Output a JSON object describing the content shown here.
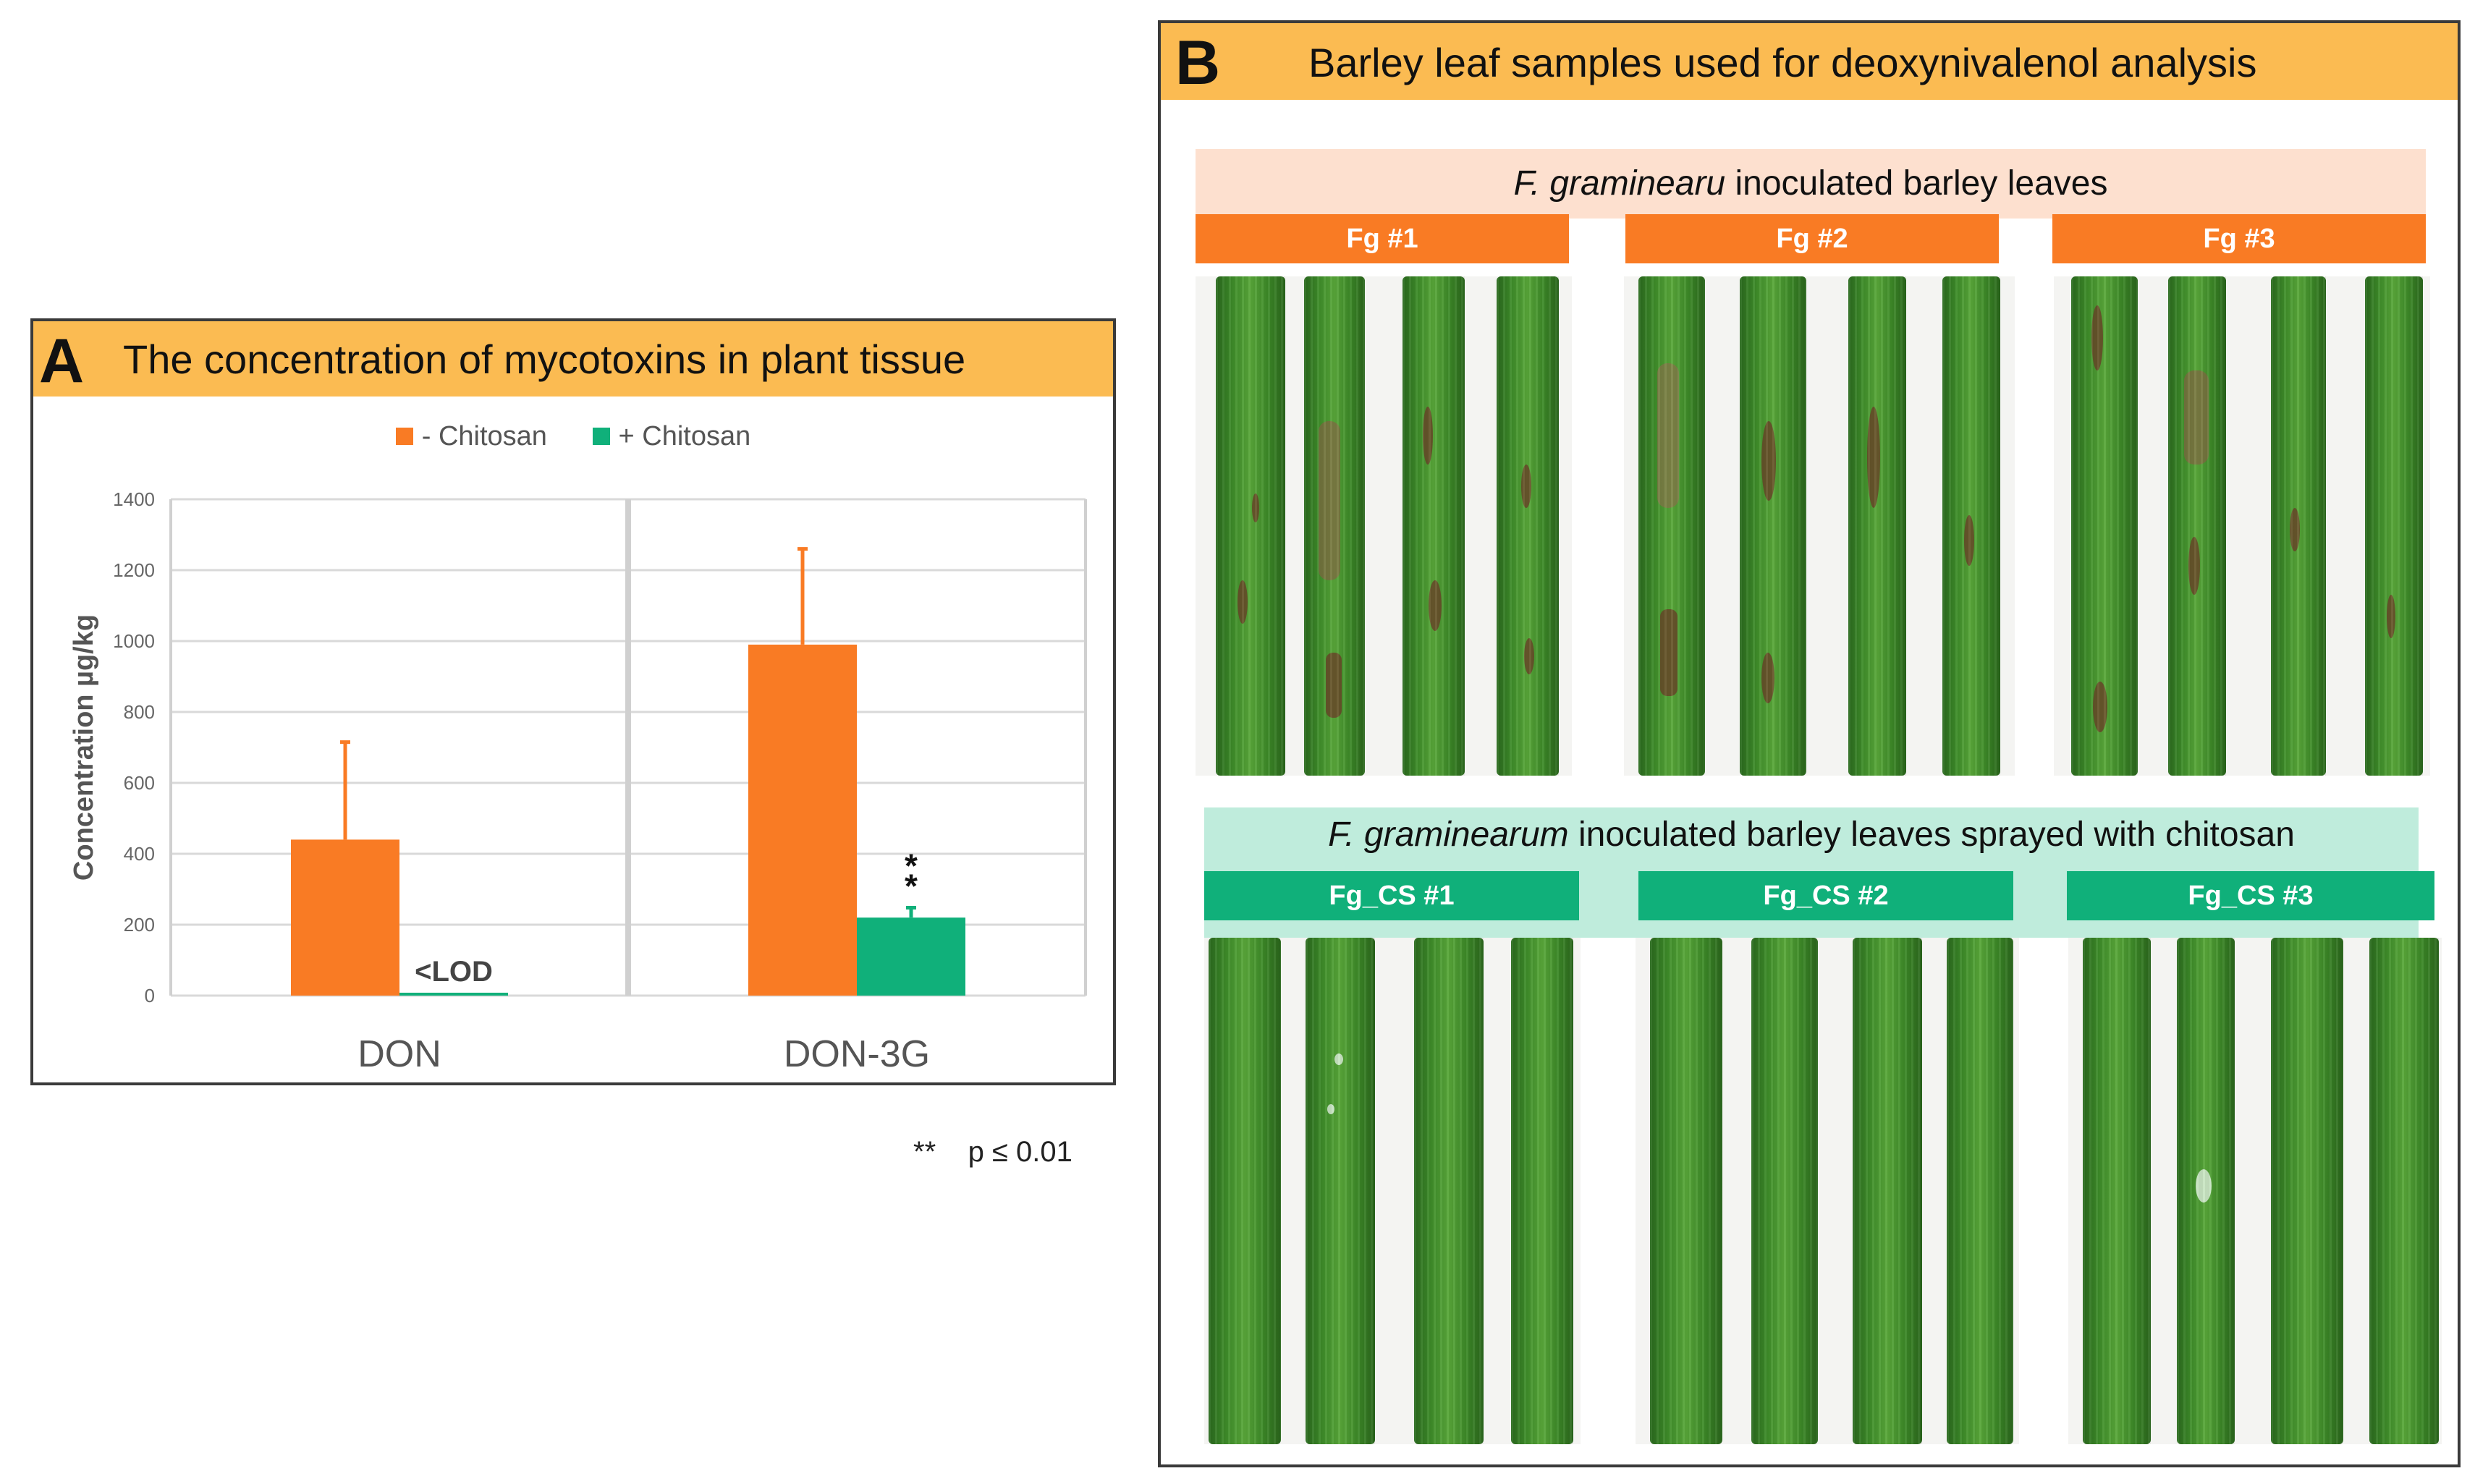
{
  "panel_a": {
    "letter": "A",
    "title": "The concentration of mycotoxins in plant tissue",
    "footnote": "**    p ≤ 0.01"
  },
  "panel_b": {
    "letter": "B",
    "title": "Barley leaf samples used for deoxynivalenol analysis",
    "group1": {
      "title_italic": "F. graminearu",
      "title_rest": " inoculated barley leaves",
      "labels": [
        "Fg #1",
        "Fg #2",
        "Fg #3"
      ]
    },
    "group2": {
      "title_italic": "F. graminearum",
      "title_rest": " inoculated barley leaves sprayed with chitosan",
      "labels": [
        "Fg_CS #1",
        "Fg_CS #2",
        "Fg_CS #3"
      ]
    }
  },
  "colors": {
    "header_bg": "#fbbb52",
    "minus_chitosan": "#f97b24",
    "plus_chitosan": "#10b07a",
    "band1_bg": "#fde0cf",
    "band2_bg": "#bfecdc"
  },
  "chart_data": {
    "type": "bar",
    "categories": [
      "DON",
      "DON-3G"
    ],
    "series": [
      {
        "name": "- Chitosan",
        "values": [
          440,
          990
        ],
        "error": [
          275,
          270
        ]
      },
      {
        "name": "+ Chitosan",
        "values": [
          0,
          220
        ],
        "error": [
          0,
          28
        ]
      }
    ],
    "ylabel": "Concentration µg/kg",
    "ylim": [
      0,
      1400
    ],
    "yticks": [
      0,
      200,
      400,
      600,
      800,
      1000,
      1200,
      1400
    ],
    "grid": true,
    "legend": "top-center",
    "annotations": [
      {
        "category": "DON",
        "series": "+ Chitosan",
        "text": "<LOD"
      },
      {
        "category": "DON-3G",
        "series": "+ Chitosan",
        "text": "**"
      }
    ]
  }
}
